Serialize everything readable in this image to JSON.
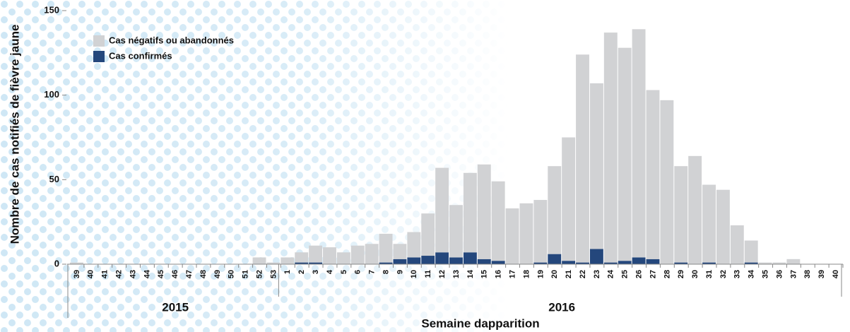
{
  "chart_data": {
    "type": "stacked_bar",
    "y_label": "Nombre de cas notifiés de fièvre jaune",
    "x_label": "Semaine dapparition",
    "groups": [
      {
        "label": "2015",
        "categories": [
          "39",
          "40",
          "41",
          "42",
          "43",
          "44",
          "45",
          "46",
          "47",
          "48",
          "49",
          "50",
          "51",
          "52",
          "53"
        ]
      },
      {
        "label": "2016",
        "categories": [
          "1",
          "2",
          "3",
          "4",
          "5",
          "6",
          "7",
          "8",
          "9",
          "10",
          "11",
          "12",
          "13",
          "14",
          "15",
          "16",
          "17",
          "18",
          "19",
          "20",
          "21",
          "22",
          "23",
          "24",
          "25",
          "26",
          "27",
          "28",
          "29",
          "30",
          "31",
          "32",
          "33",
          "34",
          "35",
          "36",
          "37",
          "38",
          "39",
          "40"
        ]
      }
    ],
    "series": [
      {
        "name": "Cas négatifs ou abandonnés",
        "color": "#d1d2d4",
        "values": [
          1,
          0,
          0,
          0,
          0,
          0,
          0,
          0,
          0,
          0,
          0,
          0,
          0,
          4,
          1,
          4,
          6,
          10,
          10,
          7,
          11,
          12,
          17,
          9,
          15,
          25,
          50,
          31,
          47,
          56,
          47,
          33,
          36,
          37,
          52,
          73,
          123,
          98,
          136,
          126,
          135,
          100,
          97,
          57,
          64,
          46,
          44,
          23,
          13,
          1,
          1,
          3,
          0,
          0,
          0
        ]
      },
      {
        "name": "Cas confirmés",
        "color": "#24477c",
        "values": [
          0,
          0,
          0,
          0,
          0,
          0,
          0,
          0,
          0,
          0,
          0,
          0,
          0,
          0,
          0,
          0,
          1,
          1,
          0,
          0,
          0,
          0,
          1,
          3,
          4,
          5,
          7,
          4,
          7,
          3,
          2,
          0,
          0,
          1,
          6,
          2,
          1,
          9,
          1,
          2,
          4,
          3,
          0,
          1,
          0,
          1,
          0,
          0,
          1,
          0,
          0,
          0,
          0,
          0,
          0
        ]
      }
    ],
    "ylim": [
      0,
      150
    ],
    "yticks": [
      0,
      50,
      100,
      150
    ],
    "legend": "top-left"
  }
}
